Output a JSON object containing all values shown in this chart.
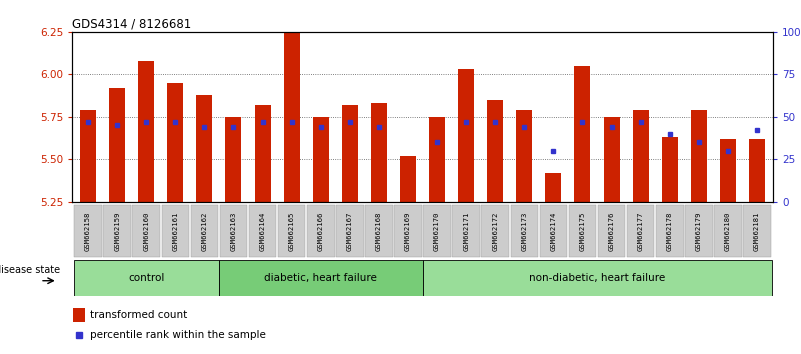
{
  "title": "GDS4314 / 8126681",
  "samples": [
    "GSM662158",
    "GSM662159",
    "GSM662160",
    "GSM662161",
    "GSM662162",
    "GSM662163",
    "GSM662164",
    "GSM662165",
    "GSM662166",
    "GSM662167",
    "GSM662168",
    "GSM662169",
    "GSM662170",
    "GSM662171",
    "GSM662172",
    "GSM662173",
    "GSM662174",
    "GSM662175",
    "GSM662176",
    "GSM662177",
    "GSM662178",
    "GSM662179",
    "GSM662180",
    "GSM662181"
  ],
  "bar_values": [
    5.79,
    5.92,
    6.08,
    5.95,
    5.88,
    5.75,
    5.82,
    6.25,
    5.75,
    5.82,
    5.83,
    5.52,
    5.75,
    6.03,
    5.85,
    5.79,
    5.42,
    6.05,
    5.75,
    5.79,
    5.63,
    5.79,
    5.62,
    5.62
  ],
  "blue_percentiles": [
    47,
    45,
    47,
    47,
    44,
    44,
    47,
    47,
    44,
    47,
    44,
    null,
    35,
    47,
    47,
    44,
    30,
    47,
    44,
    47,
    40,
    35,
    30,
    42
  ],
  "ylim": [
    5.25,
    6.25
  ],
  "yticks": [
    5.25,
    5.5,
    5.75,
    6.0,
    6.25
  ],
  "y2ticks": [
    0,
    25,
    50,
    75,
    100
  ],
  "y2ticklabels": [
    "0",
    "25",
    "50",
    "75",
    "100%"
  ],
  "bar_color": "#cc2200",
  "blue_color": "#3333cc",
  "grid_color": "#555555",
  "bg_color": "#ffffff",
  "group_labels": [
    "control",
    "diabetic, heart failure",
    "non-diabetic, heart failure"
  ],
  "group_starts": [
    0,
    5,
    12
  ],
  "group_ends": [
    5,
    12,
    24
  ],
  "group_colors": [
    "#99dd99",
    "#77cc77",
    "#99dd99"
  ],
  "disease_state_label": "disease state",
  "legend_items": [
    "transformed count",
    "percentile rank within the sample"
  ],
  "legend_colors": [
    "#cc2200",
    "#3333cc"
  ],
  "left_tick_color": "#cc2200",
  "right_tick_color": "#3333cc"
}
